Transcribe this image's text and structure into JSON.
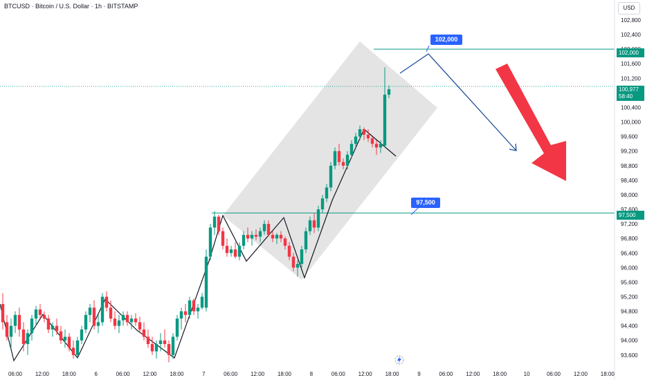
{
  "header": {
    "title": "BTCUSD · Bitcoin / U.S. Dollar · 1h · BITSTAMP",
    "currency": "USD"
  },
  "colors": {
    "up": "#089981",
    "down": "#f23645",
    "level": "#089981",
    "callout": "#2962ff",
    "channel": "#9e9e9e",
    "big_arrow": "#f23645",
    "path_arrow": "#1f4e99",
    "zigzag": "#131722"
  },
  "icons": {
    "replay": "lightning-replay-icon"
  },
  "chart_data": {
    "type": "candlestick",
    "symbol": "BTCUSD",
    "title": "BTCUSD · Bitcoin / U.S. Dollar · 1h · BITSTAMP",
    "ylim": [
      93400,
      103400
    ],
    "y_ticks": [
      "102,800",
      "102,400",
      "102,000",
      "101,600",
      "101,200",
      "100,800",
      "100,400",
      "100,000",
      "99,600",
      "99,200",
      "98,800",
      "98,400",
      "98,000",
      "97,600",
      "97,200",
      "96,800",
      "96,400",
      "96,000",
      "95,600",
      "95,200",
      "94,800",
      "94,400",
      "94,000",
      "93,600"
    ],
    "x_ticks": [
      "06:00",
      "12:00",
      "18:00",
      "6",
      "06:00",
      "12:00",
      "18:00",
      "7",
      "06:00",
      "12:00",
      "18:00",
      "8",
      "06:00",
      "12:00",
      "18:00",
      "9",
      "06:00",
      "12:00",
      "18:00",
      "10",
      "06:00",
      "12:00",
      "18:00"
    ],
    "levels": [
      {
        "price": 102000,
        "price_label": "102,000",
        "callout": "102,000"
      },
      {
        "price": 97500,
        "price_label": "97,500",
        "callout": "97,500"
      }
    ],
    "current_price": {
      "value": 100977,
      "label": "100,977",
      "countdown": "58:40"
    },
    "candles": [
      [
        95000,
        95300,
        94300,
        94500
      ],
      [
        94500,
        94700,
        94000,
        94100
      ],
      [
        94100,
        94600,
        93800,
        94400
      ],
      [
        94400,
        94800,
        94200,
        94700
      ],
      [
        94700,
        94900,
        94100,
        94300
      ],
      [
        94300,
        94500,
        93700,
        93900
      ],
      [
        93900,
        94300,
        93600,
        94200
      ],
      [
        94200,
        94700,
        94000,
        94600
      ],
      [
        94600,
        94950,
        94400,
        94850
      ],
      [
        94850,
        95000,
        94600,
        94700
      ],
      [
        94700,
        94800,
        94500,
        94600
      ],
      [
        94600,
        94700,
        94200,
        94300
      ],
      [
        94300,
        94500,
        94100,
        94400
      ],
      [
        94400,
        94600,
        94150,
        94250
      ],
      [
        94250,
        94400,
        93900,
        94000
      ],
      [
        94000,
        94300,
        93800,
        94100
      ],
      [
        94100,
        94200,
        93700,
        93800
      ],
      [
        93800,
        94000,
        93500,
        93600
      ],
      [
        93600,
        94100,
        93500,
        94000
      ],
      [
        94000,
        94400,
        93900,
        94300
      ],
      [
        94300,
        94800,
        94200,
        94700
      ],
      [
        94700,
        95000,
        94500,
        94900
      ],
      [
        94900,
        95100,
        94300,
        94400
      ],
      [
        94400,
        94700,
        94200,
        94500
      ],
      [
        94500,
        95300,
        94400,
        95200
      ],
      [
        95200,
        95350,
        94800,
        94900
      ],
      [
        94900,
        95100,
        94500,
        94600
      ],
      [
        94600,
        94800,
        94300,
        94400
      ],
      [
        94400,
        94700,
        94200,
        94550
      ],
      [
        94550,
        94800,
        94400,
        94700
      ],
      [
        94700,
        94800,
        94400,
        94500
      ],
      [
        94500,
        94700,
        94300,
        94600
      ],
      [
        94600,
        94750,
        94400,
        94500
      ],
      [
        94500,
        94650,
        94200,
        94300
      ],
      [
        94300,
        94500,
        94000,
        94100
      ],
      [
        94100,
        94300,
        93800,
        93900
      ],
      [
        93900,
        94100,
        93600,
        93700
      ],
      [
        93700,
        94000,
        93500,
        93900
      ],
      [
        93900,
        94200,
        93700,
        94000
      ],
      [
        94000,
        94300,
        93800,
        93900
      ],
      [
        93900,
        94000,
        93400,
        93600
      ],
      [
        93600,
        94200,
        93500,
        94100
      ],
      [
        94100,
        94700,
        94000,
        94600
      ],
      [
        94600,
        94900,
        94300,
        94800
      ],
      [
        94800,
        95000,
        94500,
        94700
      ],
      [
        94700,
        95200,
        94600,
        95100
      ],
      [
        95100,
        95150,
        94700,
        94800
      ],
      [
        94800,
        95000,
        94600,
        94900
      ],
      [
        94900,
        95300,
        94850,
        95200
      ],
      [
        94900,
        96500,
        94800,
        96300
      ],
      [
        96300,
        97200,
        96200,
        97100
      ],
      [
        97100,
        97550,
        96900,
        97400
      ],
      [
        97400,
        97450,
        96900,
        97000
      ],
      [
        97000,
        97100,
        96500,
        96600
      ],
      [
        96600,
        96800,
        96300,
        96400
      ],
      [
        96400,
        96600,
        96300,
        96500
      ],
      [
        96500,
        96700,
        96250,
        96300
      ],
      [
        96300,
        96700,
        96200,
        96600
      ],
      [
        96600,
        97000,
        96500,
        96900
      ],
      [
        96900,
        97100,
        96700,
        96800
      ],
      [
        96800,
        97000,
        96600,
        96900
      ],
      [
        96900,
        97050,
        96750,
        96850
      ],
      [
        96850,
        97100,
        96700,
        97000
      ],
      [
        97000,
        97300,
        96900,
        97200
      ],
      [
        97200,
        97300,
        96850,
        96900
      ],
      [
        96900,
        97000,
        96700,
        96800
      ],
      [
        96800,
        96950,
        96650,
        96900
      ],
      [
        96900,
        97000,
        96700,
        96800
      ],
      [
        96800,
        96850,
        96500,
        96600
      ],
      [
        96600,
        96700,
        96200,
        96300
      ],
      [
        96300,
        96400,
        95900,
        96000
      ],
      [
        96000,
        96200,
        95750,
        96100
      ],
      [
        96100,
        96600,
        96000,
        96500
      ],
      [
        96500,
        97100,
        96400,
        97000
      ],
      [
        97000,
        97400,
        96900,
        97300
      ],
      [
        97300,
        97500,
        96950,
        97100
      ],
      [
        97100,
        97700,
        97000,
        97600
      ],
      [
        97600,
        98000,
        97500,
        97900
      ],
      [
        97900,
        98300,
        97800,
        98200
      ],
      [
        98200,
        98900,
        98100,
        98800
      ],
      [
        98800,
        99300,
        98700,
        99200
      ],
      [
        99200,
        99400,
        98800,
        98900
      ],
      [
        98900,
        99000,
        98700,
        98800
      ],
      [
        98800,
        99200,
        98700,
        99100
      ],
      [
        99100,
        99500,
        99000,
        99400
      ],
      [
        99400,
        99700,
        99300,
        99600
      ],
      [
        99600,
        99900,
        99500,
        99800
      ],
      [
        99800,
        99850,
        99500,
        99650
      ],
      [
        99650,
        99800,
        99450,
        99550
      ],
      [
        99550,
        99600,
        99300,
        99400
      ],
      [
        99400,
        99500,
        99100,
        99300
      ],
      [
        99300,
        99500,
        99150,
        99400
      ],
      [
        99350,
        101500,
        99300,
        100750
      ],
      [
        100750,
        101000,
        100650,
        100900
      ]
    ]
  }
}
